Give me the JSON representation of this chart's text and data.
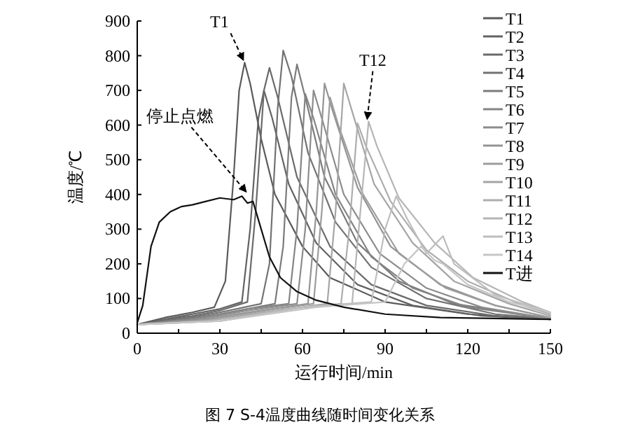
{
  "chart_data": {
    "type": "line",
    "xlabel": "运行时间/min",
    "ylabel": "温度/℃",
    "xlim": [
      0,
      150
    ],
    "ylim": [
      0,
      900
    ],
    "xticks": [
      0,
      {
        "value": 15,
        "label": null
      },
      30,
      {
        "value": 45,
        "label": null
      },
      60,
      {
        "value": 75,
        "label": null
      },
      90,
      {
        "value": 105,
        "label": null
      },
      120,
      {
        "value": 135,
        "label": null
      },
      150
    ],
    "yticks": [
      0,
      100,
      200,
      300,
      400,
      500,
      600,
      700,
      800,
      900
    ],
    "grid": false,
    "legend": "top right",
    "marker": "none",
    "line_style": "solid",
    "series": [
      {
        "name": "T1",
        "color": "#5a5a5a",
        "x": [
          0,
          10,
          20,
          28,
          32,
          35,
          37,
          39,
          41,
          45,
          50,
          60,
          70,
          90,
          120,
          150
        ],
        "values": [
          25,
          45,
          60,
          75,
          150,
          450,
          700,
          780,
          720,
          560,
          400,
          250,
          160,
          90,
          55,
          40
        ]
      },
      {
        "name": "T2",
        "color": "#626262",
        "x": [
          0,
          10,
          20,
          30,
          38,
          41,
          44,
          46,
          49,
          55,
          65,
          80,
          100,
          125,
          150
        ],
        "values": [
          25,
          40,
          55,
          70,
          90,
          300,
          620,
          700,
          620,
          430,
          260,
          140,
          80,
          50,
          40
        ]
      },
      {
        "name": "T3",
        "color": "#6a6a6a",
        "x": [
          0,
          10,
          20,
          30,
          40,
          43,
          46,
          48,
          51,
          58,
          70,
          85,
          105,
          130,
          150
        ],
        "values": [
          25,
          38,
          50,
          65,
          90,
          350,
          700,
          765,
          680,
          450,
          250,
          140,
          80,
          50,
          40
        ]
      },
      {
        "name": "T4",
        "color": "#727272",
        "x": [
          0,
          15,
          30,
          45,
          48,
          51,
          53,
          56,
          62,
          72,
          85,
          105,
          130,
          150
        ],
        "values": [
          25,
          40,
          60,
          85,
          200,
          650,
          815,
          740,
          520,
          320,
          190,
          100,
          55,
          42
        ]
      },
      {
        "name": "T5",
        "color": "#7b7b7b",
        "x": [
          0,
          15,
          30,
          50,
          53,
          56,
          58,
          61,
          68,
          80,
          95,
          115,
          150
        ],
        "values": [
          25,
          38,
          55,
          85,
          250,
          680,
          775,
          680,
          450,
          260,
          150,
          85,
          42
        ]
      },
      {
        "name": "T6",
        "color": "#848484",
        "x": [
          0,
          20,
          40,
          55,
          58,
          61,
          64,
          72,
          85,
          100,
          120,
          150
        ],
        "values": [
          25,
          40,
          70,
          85,
          300,
          690,
          620,
          400,
          220,
          130,
          75,
          42
        ]
      },
      {
        "name": "T7",
        "color": "#8c8c8c",
        "x": [
          0,
          20,
          40,
          58,
          61,
          64,
          67,
          75,
          88,
          105,
          125,
          150
        ],
        "values": [
          25,
          38,
          65,
          85,
          300,
          700,
          620,
          400,
          230,
          130,
          75,
          42
        ]
      },
      {
        "name": "T8",
        "color": "#949494",
        "x": [
          0,
          20,
          40,
          62,
          65,
          68,
          71,
          80,
          92,
          110,
          130,
          150
        ],
        "values": [
          25,
          35,
          60,
          85,
          350,
          720,
          640,
          420,
          250,
          140,
          80,
          45
        ]
      },
      {
        "name": "T9",
        "color": "#9c9c9c",
        "x": [
          0,
          25,
          50,
          64,
          67,
          70,
          73,
          82,
          95,
          112,
          130,
          150
        ],
        "values": [
          25,
          38,
          70,
          85,
          350,
          680,
          600,
          400,
          230,
          130,
          80,
          45
        ]
      },
      {
        "name": "T10",
        "color": "#a5a5a5",
        "x": [
          0,
          25,
          50,
          69,
          72,
          75,
          78,
          86,
          100,
          115,
          135,
          150
        ],
        "values": [
          25,
          35,
          65,
          85,
          350,
          720,
          640,
          430,
          260,
          150,
          85,
          50
        ]
      },
      {
        "name": "T11",
        "color": "#adadad",
        "x": [
          0,
          25,
          55,
          74,
          77,
          80,
          83,
          92,
          105,
          120,
          140,
          150
        ],
        "values": [
          25,
          35,
          70,
          85,
          300,
          605,
          540,
          380,
          240,
          150,
          80,
          55
        ]
      },
      {
        "name": "T12",
        "color": "#b5b5b5",
        "x": [
          0,
          30,
          60,
          78,
          81,
          84,
          87,
          95,
          108,
          122,
          140,
          150
        ],
        "values": [
          25,
          35,
          75,
          85,
          350,
          610,
          540,
          390,
          260,
          160,
          90,
          60
        ]
      },
      {
        "name": "T13",
        "color": "#bdbdbd",
        "x": [
          0,
          30,
          60,
          85,
          90,
          94,
          98,
          105,
          111,
          115,
          130,
          150
        ],
        "values": [
          25,
          35,
          75,
          90,
          300,
          395,
          330,
          230,
          280,
          200,
          110,
          60
        ]
      },
      {
        "name": "T14",
        "color": "#c6c6c6",
        "x": [
          0,
          30,
          65,
          90,
          97,
          103,
          108,
          111,
          120,
          135,
          150
        ],
        "values": [
          25,
          35,
          75,
          90,
          200,
          250,
          210,
          200,
          140,
          90,
          60
        ]
      },
      {
        "name": "T进",
        "color": "#111111",
        "x": [
          0,
          2,
          5,
          8,
          12,
          16,
          20,
          25,
          30,
          35,
          38,
          40,
          42,
          45,
          48,
          52,
          58,
          65,
          75,
          90,
          110,
          150
        ],
        "values": [
          30,
          80,
          250,
          320,
          350,
          365,
          370,
          380,
          390,
          385,
          395,
          375,
          380,
          300,
          220,
          160,
          120,
          95,
          75,
          55,
          45,
          40
        ]
      }
    ],
    "annotations": [
      {
        "text": "T1",
        "x": 39,
        "y": 780
      },
      {
        "text": "停止点燃",
        "x": 40,
        "y": 400
      },
      {
        "text": "T12",
        "x": 84,
        "y": 610
      },
      "图 7  S-4温度曲线随时间变化关系"
    ]
  }
}
